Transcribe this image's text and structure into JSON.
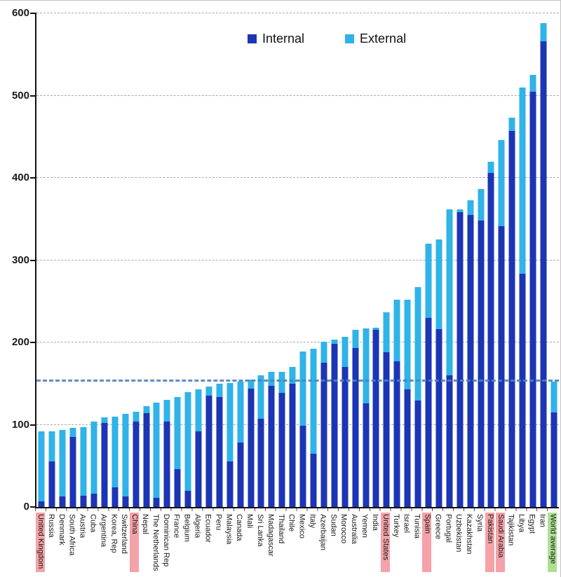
{
  "legend": {
    "items": [
      {
        "label": "Internal",
        "color": "#1c35b5"
      },
      {
        "label": "External",
        "color": "#2fb3e8"
      }
    ]
  },
  "y_axis": {
    "ticks": [
      0,
      100,
      200,
      300,
      400,
      500,
      600
    ],
    "max": 600
  },
  "chart_data": {
    "type": "bar",
    "stacked": true,
    "title": "",
    "xlabel": "",
    "ylabel": "",
    "ylim": [
      0,
      600
    ],
    "grid": "horizontal-dashed",
    "legend_position": "top",
    "categories": [
      "United Kingdom",
      "Russia",
      "Denmark",
      "South Africa",
      "Austria",
      "Cuba",
      "Argentina",
      "Korea, Rep",
      "Switzerland",
      "China",
      "Nepal",
      "The Netherlands",
      "Dominican Rep",
      "France",
      "Belgium",
      "Algeria",
      "Ecuador",
      "Peru",
      "Malaysia",
      "Canada",
      "Mali",
      "Sri Lanka",
      "Madagascar",
      "Thailand",
      "Chile",
      "Mexico",
      "Italy",
      "Azerbaijan",
      "Sudan",
      "Morocco",
      "Australia",
      "Yemen",
      "India",
      "United States",
      "Turkey",
      "Israel",
      "Tunisia",
      "Spain",
      "Greece",
      "Portugal",
      "Uzbekistan",
      "Kazakhstan",
      "Syria",
      "Pakistan",
      "Saudi Arabia",
      "Tajikistan",
      "Libya",
      "Egypt",
      "Iran",
      "World average"
    ],
    "series": [
      {
        "name": "Internal",
        "color": "#1c35b5",
        "values": [
          7,
          55,
          13,
          85,
          14,
          16,
          102,
          24,
          13,
          104,
          114,
          11,
          104,
          46,
          20,
          92,
          135,
          134,
          55,
          78,
          144,
          107,
          147,
          139,
          150,
          99,
          65,
          175,
          198,
          170,
          193,
          126,
          215,
          188,
          177,
          143,
          129,
          230,
          216,
          160,
          358,
          355,
          348,
          406,
          341,
          457,
          283,
          505,
          566,
          115
        ]
      },
      {
        "name": "External",
        "color": "#2fb3e8",
        "values": [
          85,
          37,
          81,
          11,
          83,
          88,
          7,
          86,
          100,
          12,
          9,
          116,
          26,
          88,
          120,
          51,
          11,
          16,
          96,
          74,
          11,
          53,
          17,
          25,
          20,
          90,
          127,
          26,
          5,
          37,
          22,
          91,
          3,
          49,
          75,
          109,
          138,
          90,
          109,
          202,
          4,
          18,
          38,
          14,
          105,
          16,
          227,
          20,
          22,
          37
        ]
      }
    ],
    "reference_line": {
      "value": 152,
      "meaning": "World average",
      "color": "#4f81bd",
      "style": "dashed"
    },
    "highlight_colors": {
      "pink": "#f4a2a8",
      "green": "#ade093"
    },
    "highlighted": {
      "pink": [
        "United Kingdom",
        "China",
        "United States",
        "Spain",
        "Pakistan",
        "Saudi Arabia"
      ],
      "green": [
        "World average"
      ]
    }
  }
}
